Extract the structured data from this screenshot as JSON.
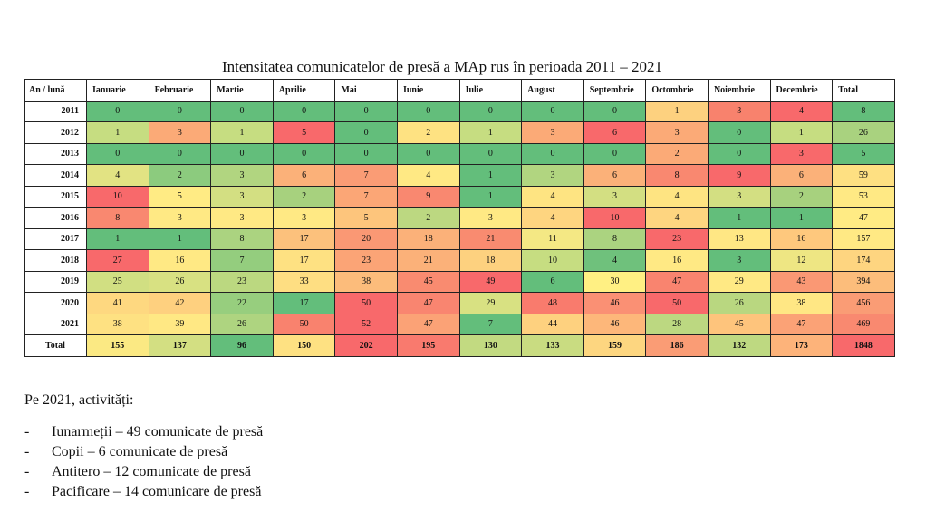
{
  "title": "Intensitatea comunicatelor de presă a MAp rus în perioada 2011 – 2021",
  "table": {
    "header": [
      "An / lună",
      "Ianuarie",
      "Februarie",
      "Martie",
      "Aprilie",
      "Mai",
      "Iunie",
      "Iulie",
      "August",
      "Septembrie",
      "Octombrie",
      "Noiembrie",
      "Decembrie",
      "Total"
    ],
    "rows": [
      {
        "year": "2011",
        "values": [
          "0",
          "0",
          "0",
          "0",
          "0",
          "0",
          "0",
          "0",
          "0",
          "1",
          "3",
          "4",
          "8"
        ],
        "colors": [
          "#63be7b",
          "#63be7b",
          "#63be7b",
          "#63be7b",
          "#63be7b",
          "#63be7b",
          "#63be7b",
          "#63be7b",
          "#63be7b",
          "#fdd17f",
          "#f8826d",
          "#f8696b",
          "#63be7b"
        ]
      },
      {
        "year": "2012",
        "values": [
          "1",
          "3",
          "1",
          "5",
          "0",
          "2",
          "1",
          "3",
          "6",
          "3",
          "0",
          "1",
          "26"
        ],
        "colors": [
          "#c6dd81",
          "#fbaa77",
          "#c6dd81",
          "#f8696b",
          "#63be7b",
          "#fee282",
          "#c6dd81",
          "#fbaa77",
          "#f8696b",
          "#fbaa77",
          "#63be7b",
          "#c6dd81",
          "#a9d27f"
        ]
      },
      {
        "year": "2013",
        "values": [
          "0",
          "0",
          "0",
          "0",
          "0",
          "0",
          "0",
          "0",
          "0",
          "2",
          "0",
          "3",
          "5"
        ],
        "colors": [
          "#63be7b",
          "#63be7b",
          "#63be7b",
          "#63be7b",
          "#63be7b",
          "#63be7b",
          "#63be7b",
          "#63be7b",
          "#63be7b",
          "#fbaa77",
          "#63be7b",
          "#f8696b",
          "#63be7b"
        ]
      },
      {
        "year": "2014",
        "values": [
          "4",
          "2",
          "3",
          "6",
          "7",
          "4",
          "1",
          "3",
          "6",
          "8",
          "9",
          "6",
          "59"
        ],
        "colors": [
          "#e2e383",
          "#8ccb7e",
          "#b1d580",
          "#fbb179",
          "#fa9c75",
          "#ffe984",
          "#63be7b",
          "#b1d580",
          "#fbb179",
          "#f98870",
          "#f8696b",
          "#fbb179",
          "#fee082"
        ]
      },
      {
        "year": "2015",
        "values": [
          "10",
          "5",
          "3",
          "2",
          "7",
          "9",
          "1",
          "4",
          "3",
          "4",
          "3",
          "2",
          "53"
        ],
        "colors": [
          "#f8696b",
          "#ffeb84",
          "#d3df82",
          "#a7d17e",
          "#fba676",
          "#f98870",
          "#63be7b",
          "#fee482",
          "#d3df82",
          "#fee482",
          "#d3df82",
          "#a7d17e",
          "#ffe984"
        ]
      },
      {
        "year": "2016",
        "values": [
          "8",
          "3",
          "3",
          "3",
          "5",
          "2",
          "3",
          "4",
          "10",
          "4",
          "1",
          "1",
          "47"
        ],
        "colors": [
          "#f98870",
          "#ffe984",
          "#ffe984",
          "#ffe984",
          "#fdc57c",
          "#bcd881",
          "#ffe984",
          "#fed580",
          "#f8696b",
          "#fed580",
          "#63be7b",
          "#63be7b",
          "#ffeb84"
        ]
      },
      {
        "year": "2017",
        "values": [
          "1",
          "1",
          "8",
          "17",
          "20",
          "18",
          "21",
          "11",
          "8",
          "23",
          "13",
          "16",
          "157"
        ],
        "colors": [
          "#63be7b",
          "#63be7b",
          "#abd380",
          "#fcc17c",
          "#fa9874",
          "#fbb179",
          "#f98b70",
          "#f4e884",
          "#abd380",
          "#f8696b",
          "#ffe784",
          "#fec87d",
          "#ffe984"
        ]
      },
      {
        "year": "2018",
        "values": [
          "27",
          "16",
          "7",
          "17",
          "23",
          "21",
          "18",
          "10",
          "4",
          "16",
          "3",
          "12",
          "174"
        ],
        "colors": [
          "#f8696b",
          "#ffe984",
          "#94cd7e",
          "#fee182",
          "#fba476",
          "#fbb179",
          "#fdd17f",
          "#c6dd81",
          "#6fc17c",
          "#ffe984",
          "#63be7b",
          "#eee683",
          "#fed580"
        ]
      },
      {
        "year": "2019",
        "values": [
          "25",
          "26",
          "23",
          "33",
          "38",
          "45",
          "49",
          "6",
          "30",
          "47",
          "29",
          "43",
          "394"
        ],
        "colors": [
          "#d1df82",
          "#d8e182",
          "#bbd880",
          "#fede82",
          "#fcbc7b",
          "#f98b70",
          "#f8696b",
          "#63be7b",
          "#fff083",
          "#f9846f",
          "#ffe984",
          "#fa9874",
          "#fcbd7b"
        ]
      },
      {
        "year": "2020",
        "values": [
          "41",
          "42",
          "22",
          "17",
          "50",
          "47",
          "29",
          "48",
          "46",
          "50",
          "26",
          "38",
          "456"
        ],
        "colors": [
          "#fed880",
          "#fed07f",
          "#97ce7e",
          "#63be7b",
          "#f8696b",
          "#f98570",
          "#d8e182",
          "#f97b6d",
          "#fa9074",
          "#f8696b",
          "#b9d780",
          "#ffe784",
          "#fa9c75"
        ]
      },
      {
        "year": "2021",
        "values": [
          "38",
          "39",
          "26",
          "50",
          "52",
          "47",
          "7",
          "44",
          "46",
          "28",
          "45",
          "47",
          "469"
        ],
        "colors": [
          "#fee182",
          "#ffe884",
          "#aed480",
          "#f9826e",
          "#f8696b",
          "#fba276",
          "#63be7b",
          "#fed17f",
          "#fdb77a",
          "#bcd881",
          "#fec47c",
          "#fba276",
          "#f98970"
        ]
      }
    ],
    "total": {
      "label": "Total",
      "values": [
        "155",
        "137",
        "96",
        "150",
        "202",
        "195",
        "130",
        "133",
        "159",
        "186",
        "132",
        "173",
        "1848"
      ],
      "colors": [
        "#fbe983",
        "#d3df82",
        "#63be7b",
        "#fee182",
        "#f8696b",
        "#f97a6e",
        "#c2da81",
        "#c9dc81",
        "#fdd680",
        "#fa9c75",
        "#bed981",
        "#fdb37a",
        "#f8696b"
      ]
    }
  },
  "note": {
    "heading": "Pe 2021, activități:",
    "items": [
      "Iunarmeții – 49 comunicate de presă",
      "Copii – 6 comunicate de presă",
      "Antitero – 12 comunicate de presă",
      "Pacificare – 14 comunicare de presă"
    ],
    "bullet": "-"
  }
}
